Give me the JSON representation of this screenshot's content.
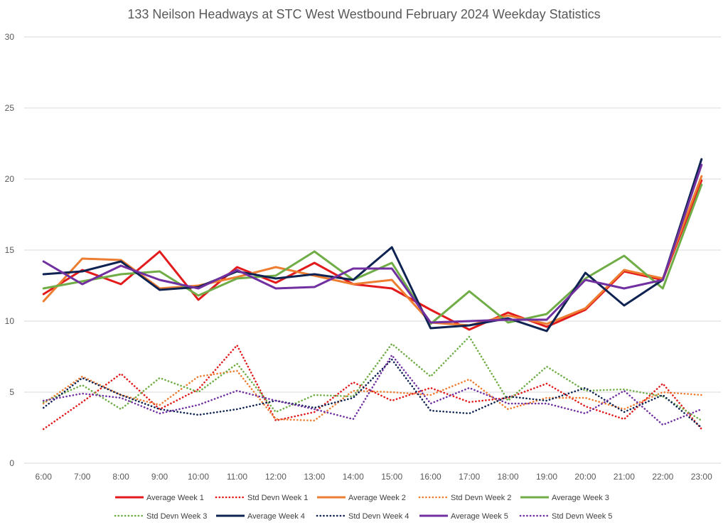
{
  "chart_data": {
    "type": "line",
    "title": "133 Neilson Headways at STC West Westbound February 2024 Weekday Statistics",
    "xlabel": "",
    "ylabel": "",
    "ylim": [
      0,
      30
    ],
    "yticks": [
      "0",
      "5",
      "10",
      "15",
      "20",
      "25",
      "30"
    ],
    "grid": true,
    "legend_position": "bottom",
    "categories": [
      "6:00",
      "7:00",
      "8:00",
      "9:00",
      "10:00",
      "11:00",
      "12:00",
      "13:00",
      "14:00",
      "15:00",
      "16:00",
      "17:00",
      "18:00",
      "19:00",
      "20:00",
      "21:00",
      "22:00",
      "23:00"
    ],
    "series": [
      {
        "name": "Average Week 1",
        "color": "#e31a1c",
        "style": "solid",
        "values": [
          11.9,
          13.6,
          12.6,
          14.9,
          11.5,
          13.8,
          12.7,
          14.1,
          12.6,
          12.3,
          10.8,
          9.4,
          10.6,
          9.6,
          10.8,
          13.5,
          12.9,
          19.9
        ]
      },
      {
        "name": "Std Devn Week 1",
        "color": "#e31a1c",
        "style": "dotted",
        "values": [
          2.4,
          4.3,
          6.3,
          3.8,
          5.2,
          8.3,
          3.0,
          3.6,
          5.7,
          4.4,
          5.3,
          4.3,
          4.6,
          5.6,
          4.0,
          3.1,
          5.6,
          2.4
        ]
      },
      {
        "name": "Average Week 2",
        "color": "#ed7d31",
        "style": "solid",
        "values": [
          11.4,
          14.4,
          14.3,
          12.3,
          12.5,
          13.1,
          13.8,
          13.2,
          12.6,
          12.9,
          9.9,
          9.7,
          10.4,
          9.8,
          10.9,
          13.6,
          13.0,
          20.2
        ]
      },
      {
        "name": "Std Devn Week 2",
        "color": "#ed7d31",
        "style": "dotted",
        "values": [
          4.2,
          6.1,
          4.8,
          4.1,
          6.1,
          6.5,
          3.1,
          3.0,
          5.1,
          5.0,
          4.8,
          5.9,
          3.8,
          4.6,
          4.6,
          3.8,
          5.0,
          4.8
        ]
      },
      {
        "name": "Average Week 3",
        "color": "#70ad47",
        "style": "solid",
        "values": [
          12.3,
          12.8,
          13.3,
          13.5,
          11.8,
          13.0,
          13.2,
          14.9,
          12.9,
          14.1,
          9.8,
          12.1,
          9.9,
          10.5,
          13.0,
          14.6,
          12.3,
          19.6
        ]
      },
      {
        "name": "Std Devn Week 3",
        "color": "#70ad47",
        "style": "dotted",
        "values": [
          4.3,
          5.5,
          3.8,
          6.0,
          5.0,
          7.0,
          3.6,
          4.8,
          4.7,
          8.4,
          6.1,
          8.9,
          4.4,
          6.8,
          5.1,
          5.2,
          4.7,
          3.0
        ]
      },
      {
        "name": "Average Week 4",
        "color": "#0f2352",
        "style": "solid",
        "values": [
          13.3,
          13.5,
          14.2,
          12.2,
          12.4,
          13.5,
          13.0,
          13.3,
          12.9,
          15.2,
          9.5,
          9.7,
          10.2,
          9.3,
          13.4,
          11.1,
          12.9,
          21.4
        ]
      },
      {
        "name": "Std Devn Week 4",
        "color": "#0f2352",
        "style": "dotted",
        "values": [
          3.9,
          6.0,
          4.8,
          3.8,
          3.4,
          3.8,
          4.4,
          3.9,
          4.6,
          7.3,
          3.7,
          3.5,
          4.7,
          4.4,
          5.3,
          3.6,
          4.8,
          2.5
        ]
      },
      {
        "name": "Average Week 5",
        "color": "#7030a0",
        "style": "solid",
        "values": [
          14.2,
          12.6,
          13.9,
          12.9,
          12.3,
          13.6,
          12.3,
          12.4,
          13.7,
          13.7,
          9.9,
          10.0,
          10.1,
          10.1,
          12.9,
          12.3,
          12.9,
          21.0
        ]
      },
      {
        "name": "Std Devn Week 5",
        "color": "#7030a0",
        "style": "dotted",
        "values": [
          4.4,
          4.9,
          4.6,
          3.5,
          4.1,
          5.1,
          4.4,
          3.8,
          3.1,
          7.6,
          4.2,
          5.3,
          4.2,
          4.2,
          3.5,
          5.1,
          2.7,
          3.8
        ]
      }
    ]
  }
}
